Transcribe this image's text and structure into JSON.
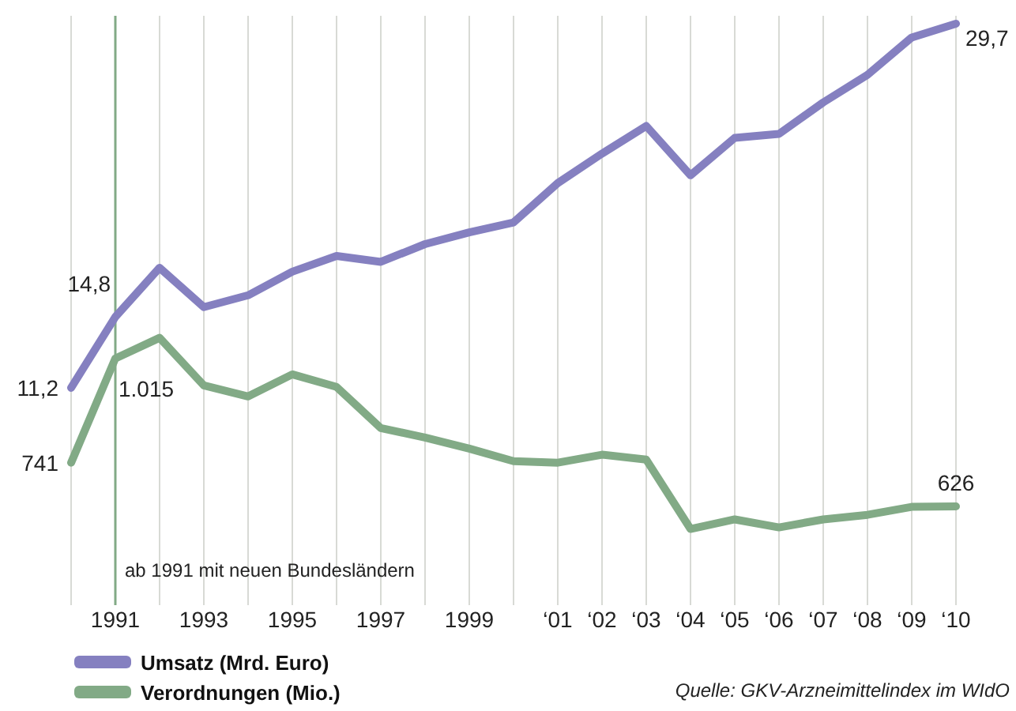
{
  "chart_data": {
    "type": "line",
    "categories": [
      null,
      "1991",
      null,
      "1993",
      null,
      "1995",
      null,
      "1997",
      null,
      "1999",
      null,
      "‘01",
      "‘02",
      "‘03",
      "‘04",
      "‘05",
      "‘06",
      "‘07",
      "‘08",
      "‘09",
      "‘10"
    ],
    "series": [
      {
        "name": "Umsatz (Mrd. Euro)",
        "color": "#8580c0",
        "values": [
          11.2,
          14.8,
          17.3,
          15.3,
          15.9,
          17.1,
          17.9,
          17.6,
          18.5,
          19.1,
          19.6,
          21.6,
          23.1,
          24.5,
          22.0,
          23.9,
          24.1,
          25.7,
          27.1,
          29.0,
          29.7
        ],
        "value_labels": [
          "11,2",
          "14,8",
          null,
          null,
          null,
          null,
          null,
          null,
          null,
          null,
          null,
          null,
          null,
          null,
          null,
          null,
          null,
          null,
          null,
          null,
          "29,7"
        ]
      },
      {
        "name": "Verordnungen (Mio.)",
        "color": "#82aa86",
        "axis": "y2",
        "values": [
          741,
          1015,
          1069,
          944,
          915,
          973,
          940,
          832,
          807,
          778,
          745,
          741,
          762,
          749,
          567,
          592,
          571,
          592,
          604,
          625,
          626
        ],
        "value_labels": [
          "741",
          "1.015",
          null,
          null,
          null,
          null,
          null,
          null,
          null,
          null,
          null,
          null,
          null,
          null,
          null,
          null,
          null,
          null,
          null,
          null,
          "626"
        ]
      }
    ],
    "ylim": [
      0.8,
      30.1
    ],
    "y2lim": [
      400,
      1915
    ],
    "tick_labels": "x",
    "grid": "x",
    "legend": "bottom left",
    "line_style": "solid",
    "marker": "none",
    "ref_lines": [
      {
        "axis": "x",
        "value": "1991",
        "label": "ab 1991 mit neuen Bundesländern",
        "color": "#82aa86"
      }
    ],
    "annotations": [
      "Quelle: GKV-Arzneimittelindex im WIdO"
    ]
  }
}
